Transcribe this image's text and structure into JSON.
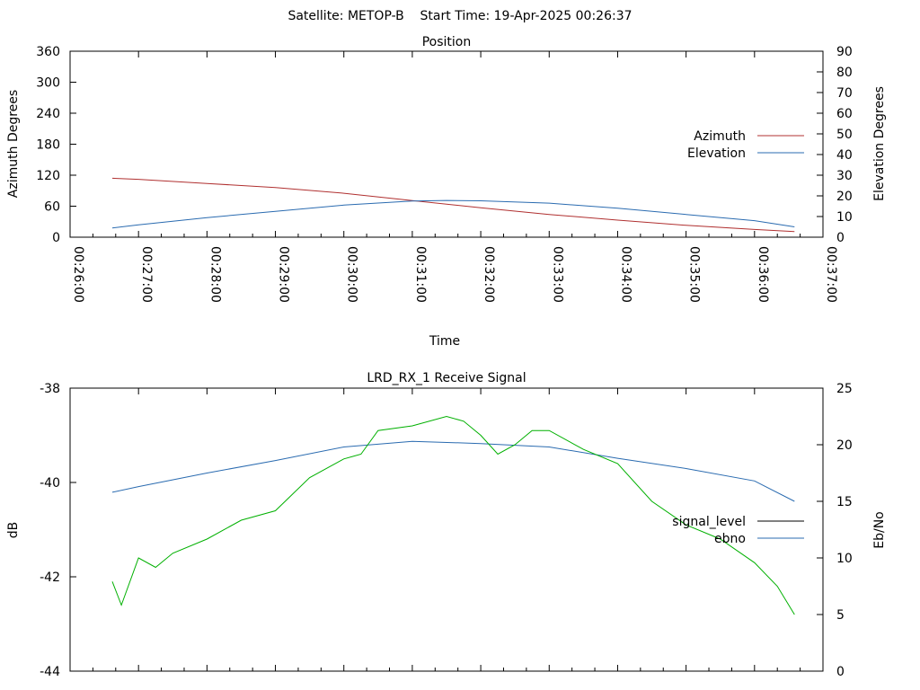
{
  "header": {
    "title": "Satellite: METOP-B    Start Time: 19-Apr-2025 00:26:37"
  },
  "chart_data": [
    {
      "type": "line",
      "title": "Position",
      "xlabel": "Time",
      "ylabel": "Azimuth Degrees",
      "y2label": "Elevation Degrees",
      "x_tick_labels": [
        "00:26:00",
        "00:27:00",
        "00:28:00",
        "00:29:00",
        "00:30:00",
        "00:31:00",
        "00:32:00",
        "00:33:00",
        "00:34:00",
        "00:35:00",
        "00:36:00",
        "00:37:00"
      ],
      "y_ticks": [
        "0",
        "60",
        "120",
        "180",
        "240",
        "300",
        "360"
      ],
      "y2_ticks": [
        "0",
        "10",
        "20",
        "30",
        "40",
        "50",
        "60",
        "70",
        "80",
        "90"
      ],
      "xlim": [
        "00:26:00",
        "00:37:00"
      ],
      "ylim": [
        0,
        360
      ],
      "y2lim": [
        0,
        90
      ],
      "grid": false,
      "legend_position": "right",
      "series": [
        {
          "name": "Azimuth",
          "axis": "left",
          "color": "#b03030",
          "x": [
            "00:26:37",
            "00:27:00",
            "00:28:00",
            "00:29:00",
            "00:30:00",
            "00:31:00",
            "00:32:00",
            "00:33:00",
            "00:34:00",
            "00:35:00",
            "00:36:00",
            "00:36:35"
          ],
          "values": [
            114,
            112,
            104,
            96,
            85,
            71,
            57,
            44,
            33,
            23,
            15,
            11
          ]
        },
        {
          "name": "Elevation",
          "axis": "right",
          "color": "#2a6bb0",
          "x": [
            "00:26:37",
            "00:27:00",
            "00:28:00",
            "00:29:00",
            "00:30:00",
            "00:31:00",
            "00:31:30",
            "00:32:00",
            "00:33:00",
            "00:34:00",
            "00:35:00",
            "00:36:00",
            "00:36:35"
          ],
          "values": [
            4.5,
            6,
            9.5,
            12.5,
            15.5,
            17.5,
            17.8,
            17.6,
            16.5,
            14,
            11,
            8,
            5
          ]
        }
      ]
    },
    {
      "type": "line",
      "title": "LRD_RX_1 Receive Signal",
      "xlabel": "",
      "ylabel": "dB",
      "y2label": "Eb/No",
      "y_ticks": [
        "-38",
        "-40",
        "-42",
        "-44"
      ],
      "y2_ticks": [
        "25",
        "20",
        "15",
        "10",
        "5",
        "0"
      ],
      "xlim": [
        "00:26:00",
        "00:37:00"
      ],
      "ylim": [
        -44,
        -38
      ],
      "y2lim": [
        0,
        25
      ],
      "grid": false,
      "legend_position": "right",
      "series": [
        {
          "name": "signal_level",
          "axis": "left",
          "color": "#000000",
          "x": [],
          "values": []
        },
        {
          "name": "ebno",
          "axis": "right",
          "color": "#2a6bb0",
          "x": [
            "00:26:37",
            "00:27:00",
            "00:28:00",
            "00:29:00",
            "00:30:00",
            "00:31:00",
            "00:32:00",
            "00:33:00",
            "00:34:00",
            "00:35:00",
            "00:36:00",
            "00:36:35"
          ],
          "values": [
            15.8,
            16.3,
            17.5,
            18.6,
            19.8,
            20.3,
            20.1,
            19.8,
            18.8,
            17.9,
            16.8,
            15
          ]
        },
        {
          "name": "",
          "axis": "left",
          "color": "#00b000",
          "x": [
            "00:26:37",
            "00:26:45",
            "00:27:00",
            "00:27:15",
            "00:27:30",
            "00:28:00",
            "00:28:30",
            "00:29:00",
            "00:29:30",
            "00:30:00",
            "00:30:15",
            "00:30:30",
            "00:31:00",
            "00:31:30",
            "00:31:45",
            "00:32:00",
            "00:32:15",
            "00:32:30",
            "00:32:45",
            "00:33:00",
            "00:33:30",
            "00:34:00",
            "00:34:30",
            "00:35:00",
            "00:35:30",
            "00:36:00",
            "00:36:20",
            "00:36:35"
          ],
          "values": [
            -42.1,
            -42.6,
            -41.6,
            -41.8,
            -41.5,
            -41.2,
            -40.8,
            -40.6,
            -39.9,
            -39.5,
            -39.4,
            -38.9,
            -38.8,
            -38.6,
            -38.7,
            -39.0,
            -39.4,
            -39.2,
            -38.9,
            -38.9,
            -39.3,
            -39.6,
            -40.4,
            -40.9,
            -41.2,
            -41.7,
            -42.2,
            -42.8
          ]
        }
      ]
    }
  ]
}
